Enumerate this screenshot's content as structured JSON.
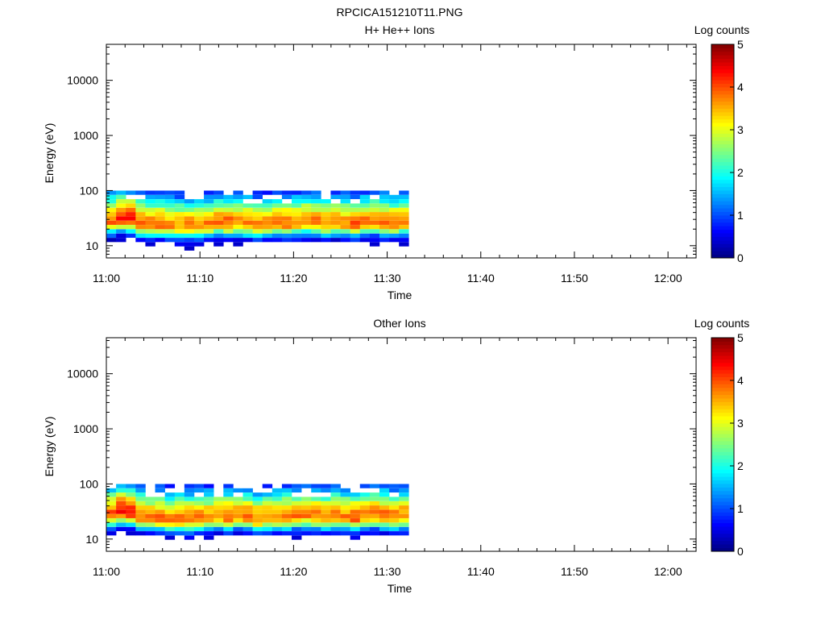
{
  "figure": {
    "title": "RPCICA151210T11.PNG"
  },
  "chart_data": [
    {
      "type": "heatmap",
      "title": "H+ He++ Ions",
      "xlabel": "Time",
      "ylabel": "Energy (eV)",
      "x_ticks": [
        "11:00",
        "11:10",
        "11:20",
        "11:30",
        "11:40",
        "11:50",
        "12:00"
      ],
      "x_range_minutes_after_11_00": [
        0,
        63
      ],
      "y_scale": "log",
      "y_range": [
        6,
        45000
      ],
      "y_ticks": [
        {
          "value": 10,
          "label": "10"
        },
        {
          "value": 100,
          "label": "100"
        },
        {
          "value": 1000,
          "label": "1000"
        },
        {
          "value": 10000,
          "label": "10000"
        }
      ],
      "colorbar": {
        "label": "Log counts",
        "min": 0,
        "max": 5,
        "ticks": [
          "0",
          "1",
          "2",
          "3",
          "4",
          "5"
        ],
        "colormap": "jet"
      },
      "data_time_extent_minutes": [
        0,
        32.3
      ],
      "energy_bins_eV": [
        6.2,
        7.4,
        8.9,
        10.6,
        12.7,
        15.2,
        18.2,
        21.8,
        26.1,
        31.2,
        37.3,
        44.6,
        53.4,
        63.9,
        76.4,
        91.4
      ],
      "peak_energy_eV": [
        28,
        31,
        30,
        25,
        24,
        24,
        23,
        23,
        23,
        24,
        24,
        26,
        25,
        26,
        25,
        23,
        24,
        25,
        25,
        26,
        27,
        26,
        25,
        26,
        25,
        24,
        26,
        27,
        26,
        25,
        26
      ],
      "peak_log_counts": [
        3.9,
        4.2,
        4.2,
        3.9,
        3.8,
        3.8,
        3.7,
        3.7,
        3.7,
        3.7,
        3.7,
        3.8,
        3.9,
        3.7,
        3.8,
        3.7,
        3.7,
        3.7,
        3.8,
        3.8,
        3.8,
        3.8,
        3.7,
        3.8,
        3.7,
        3.9,
        3.8,
        3.8,
        3.8,
        3.7,
        3.7
      ]
    },
    {
      "type": "heatmap",
      "title": "Other Ions",
      "xlabel": "Time",
      "ylabel": "Energy (eV)",
      "x_ticks": [
        "11:00",
        "11:10",
        "11:20",
        "11:30",
        "11:40",
        "11:50",
        "12:00"
      ],
      "x_range_minutes_after_11_00": [
        0,
        63
      ],
      "y_scale": "log",
      "y_range": [
        6,
        45000
      ],
      "y_ticks": [
        {
          "value": 10,
          "label": "10"
        },
        {
          "value": 100,
          "label": "100"
        },
        {
          "value": 1000,
          "label": "1000"
        },
        {
          "value": 10000,
          "label": "10000"
        }
      ],
      "colorbar": {
        "label": "Log counts",
        "min": 0,
        "max": 5,
        "ticks": [
          "0",
          "1",
          "2",
          "3",
          "4",
          "5"
        ],
        "colormap": "jet"
      },
      "data_time_extent_minutes": [
        0,
        32.3
      ],
      "energy_bins_eV": [
        6.2,
        7.4,
        8.9,
        10.6,
        12.7,
        15.2,
        18.2,
        21.8,
        26.1,
        31.2,
        37.3,
        44.6,
        53.4,
        63.9,
        76.4,
        91.4
      ],
      "peak_energy_eV": [
        28,
        31,
        30,
        25,
        24,
        24,
        23,
        23,
        23,
        24,
        24,
        26,
        25,
        26,
        25,
        23,
        24,
        25,
        25,
        26,
        27,
        26,
        25,
        26,
        25,
        24,
        26,
        27,
        26,
        25,
        26
      ],
      "peak_log_counts": [
        3.9,
        4.3,
        4.2,
        3.9,
        3.8,
        3.8,
        3.7,
        3.7,
        3.7,
        3.7,
        3.7,
        3.8,
        3.9,
        3.7,
        3.8,
        3.7,
        3.7,
        3.7,
        3.8,
        3.8,
        3.8,
        3.8,
        3.7,
        3.8,
        3.7,
        3.9,
        3.8,
        3.8,
        3.8,
        3.7,
        3.7
      ]
    }
  ]
}
